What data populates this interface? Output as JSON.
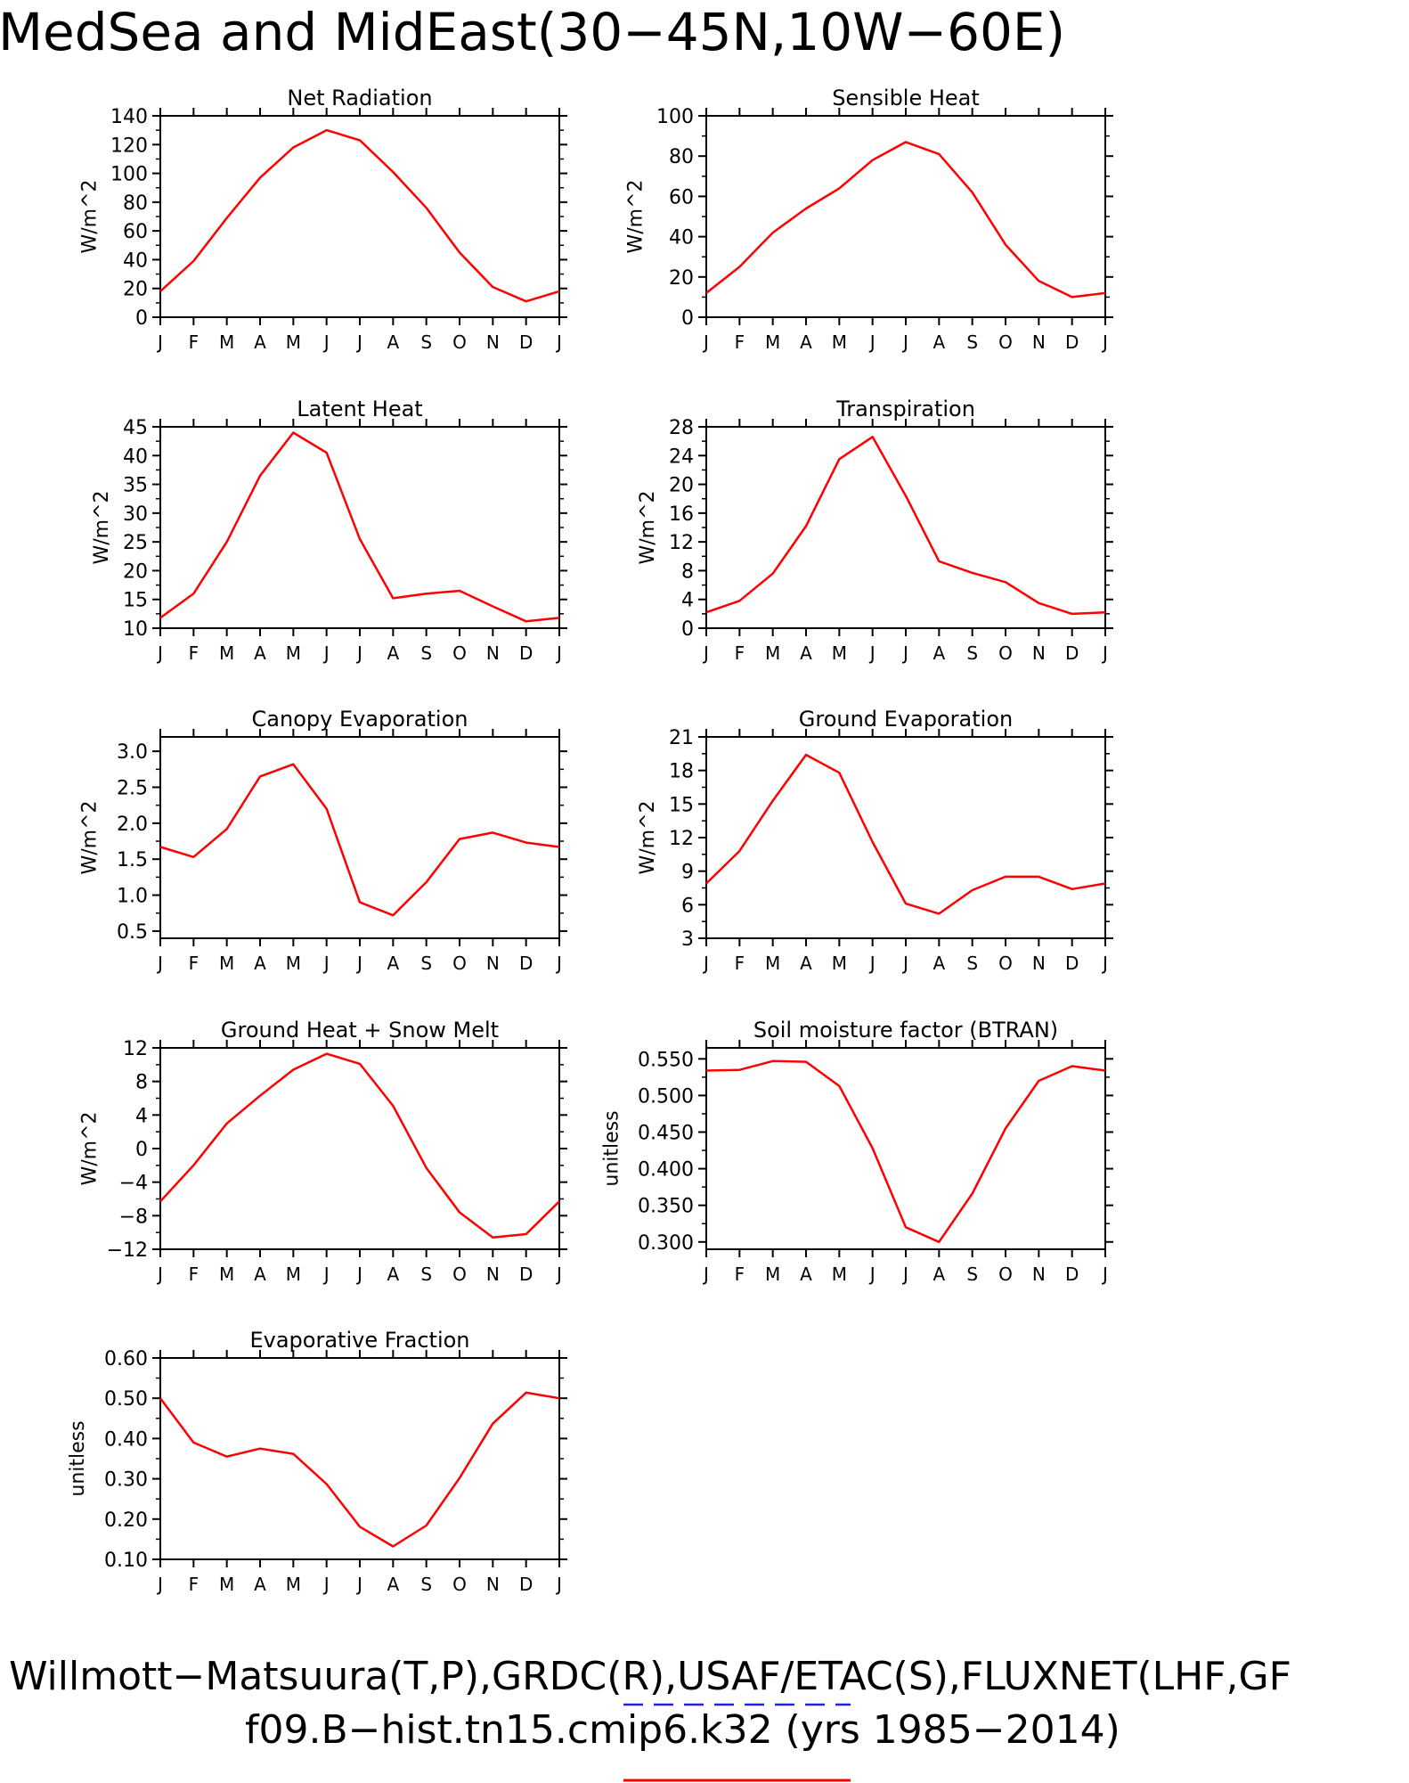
{
  "title": "MedSea and MidEast(30−45N,10W−60E)",
  "footer": {
    "line1": "Willmott−Matsuura(T,P),GRDC(R),USAF/ETAC(S),FLUXNET(LHF,GF",
    "line2": "f09.B−hist.tn15.cmip6.k32 (yrs 1985−2014)"
  },
  "legend_colors": {
    "obs": "#2222dd",
    "model": "#ff0000"
  },
  "chart_data": [
    {
      "type": "line",
      "title": "Net Radiation",
      "ylabel": "W/m^2",
      "xticks": [
        "J",
        "F",
        "M",
        "A",
        "M",
        "J",
        "J",
        "A",
        "S",
        "O",
        "N",
        "D",
        "J"
      ],
      "yticks": [
        "0",
        "20",
        "40",
        "60",
        "80",
        "100",
        "120",
        "140"
      ],
      "ylim": [
        0,
        140
      ],
      "series": [
        {
          "color": "#ff0000",
          "values": [
            18,
            39,
            69,
            97,
            118,
            130,
            123,
            101,
            76,
            45,
            21,
            11,
            18
          ]
        }
      ]
    },
    {
      "type": "line",
      "title": "Sensible Heat",
      "ylabel": "W/m^2",
      "xticks": [
        "J",
        "F",
        "M",
        "A",
        "M",
        "J",
        "J",
        "A",
        "S",
        "O",
        "N",
        "D",
        "J"
      ],
      "yticks": [
        "0",
        "20",
        "40",
        "60",
        "80",
        "100"
      ],
      "ylim": [
        0,
        100
      ],
      "series": [
        {
          "color": "#ff0000",
          "values": [
            12,
            25,
            42,
            54,
            64,
            78,
            87,
            81,
            62,
            36,
            18,
            10,
            12
          ]
        }
      ]
    },
    {
      "type": "line",
      "title": "Latent Heat",
      "ylabel": "W/m^2",
      "xticks": [
        "J",
        "F",
        "M",
        "A",
        "M",
        "J",
        "J",
        "A",
        "S",
        "O",
        "N",
        "D",
        "J"
      ],
      "yticks": [
        "10",
        "15",
        "20",
        "25",
        "30",
        "35",
        "40",
        "45"
      ],
      "ylim": [
        10,
        45
      ],
      "series": [
        {
          "color": "#ff0000",
          "values": [
            11.8,
            16,
            25,
            36.5,
            44,
            40.5,
            25.5,
            15.2,
            16,
            16.5,
            13.8,
            11.2,
            11.8
          ]
        }
      ]
    },
    {
      "type": "line",
      "title": "Transpiration",
      "ylabel": "W/m^2",
      "xticks": [
        "J",
        "F",
        "M",
        "A",
        "M",
        "J",
        "J",
        "A",
        "S",
        "O",
        "N",
        "D",
        "J"
      ],
      "yticks": [
        "0",
        "4",
        "8",
        "12",
        "16",
        "20",
        "24",
        "28"
      ],
      "ylim": [
        0,
        28
      ],
      "series": [
        {
          "color": "#ff0000",
          "values": [
            2.2,
            3.8,
            7.6,
            14.2,
            23.5,
            26.6,
            18.4,
            9.3,
            7.7,
            6.4,
            3.5,
            2.0,
            2.2
          ]
        }
      ]
    },
    {
      "type": "line",
      "title": "Canopy Evaporation",
      "ylabel": "W/m^2",
      "xticks": [
        "J",
        "F",
        "M",
        "A",
        "M",
        "J",
        "J",
        "A",
        "S",
        "O",
        "N",
        "D",
        "J"
      ],
      "yticks": [
        "0.5",
        "1.0",
        "1.5",
        "2.0",
        "2.5",
        "3.0"
      ],
      "ylim": [
        0.4,
        3.2
      ],
      "series": [
        {
          "color": "#ff0000",
          "values": [
            1.67,
            1.53,
            1.92,
            2.65,
            2.82,
            2.2,
            0.9,
            0.72,
            1.18,
            1.78,
            1.87,
            1.73,
            1.67
          ]
        }
      ]
    },
    {
      "type": "line",
      "title": "Ground Evaporation",
      "ylabel": "W/m^2",
      "xticks": [
        "J",
        "F",
        "M",
        "A",
        "M",
        "J",
        "J",
        "A",
        "S",
        "O",
        "N",
        "D",
        "J"
      ],
      "yticks": [
        "3",
        "6",
        "9",
        "12",
        "15",
        "18",
        "21"
      ],
      "ylim": [
        3,
        21
      ],
      "series": [
        {
          "color": "#ff0000",
          "values": [
            7.9,
            10.8,
            15.3,
            19.4,
            17.8,
            11.6,
            6.1,
            5.2,
            7.3,
            8.5,
            8.5,
            7.4,
            7.9
          ]
        }
      ]
    },
    {
      "type": "line",
      "title": "Ground Heat + Snow Melt",
      "ylabel": "W/m^2",
      "xticks": [
        "J",
        "F",
        "M",
        "A",
        "M",
        "J",
        "J",
        "A",
        "S",
        "O",
        "N",
        "D",
        "J"
      ],
      "yticks": [
        "−12",
        "−8",
        "−4",
        "0",
        "4",
        "8",
        "12"
      ],
      "ylim": [
        -12,
        12
      ],
      "series": [
        {
          "color": "#ff0000",
          "values": [
            -6.3,
            -2,
            3,
            6.3,
            9.4,
            11.3,
            10.1,
            5.1,
            -2.3,
            -7.6,
            -10.6,
            -10.2,
            -6.3
          ]
        }
      ]
    },
    {
      "type": "line",
      "title": "Soil moisture factor (BTRAN)",
      "ylabel": "unitless",
      "xticks": [
        "J",
        "F",
        "M",
        "A",
        "M",
        "J",
        "J",
        "A",
        "S",
        "O",
        "N",
        "D",
        "J"
      ],
      "yticks": [
        "0.300",
        "0.350",
        "0.400",
        "0.450",
        "0.500",
        "0.550"
      ],
      "ylim": [
        0.29,
        0.565
      ],
      "series": [
        {
          "color": "#ff0000",
          "values": [
            0.534,
            0.535,
            0.547,
            0.546,
            0.513,
            0.428,
            0.32,
            0.3,
            0.366,
            0.455,
            0.52,
            0.54,
            0.534
          ]
        }
      ]
    },
    {
      "type": "line",
      "title": "Evaporative Fraction",
      "ylabel": "unitless",
      "xticks": [
        "J",
        "F",
        "M",
        "A",
        "M",
        "J",
        "J",
        "A",
        "S",
        "O",
        "N",
        "D",
        "J"
      ],
      "yticks": [
        "0.10",
        "0.20",
        "0.30",
        "0.40",
        "0.50",
        "0.60"
      ],
      "ylim": [
        0.1,
        0.6
      ],
      "series": [
        {
          "color": "#ff0000",
          "values": [
            0.5,
            0.39,
            0.355,
            0.375,
            0.362,
            0.287,
            0.181,
            0.132,
            0.184,
            0.302,
            0.437,
            0.514,
            0.5
          ]
        }
      ]
    }
  ]
}
